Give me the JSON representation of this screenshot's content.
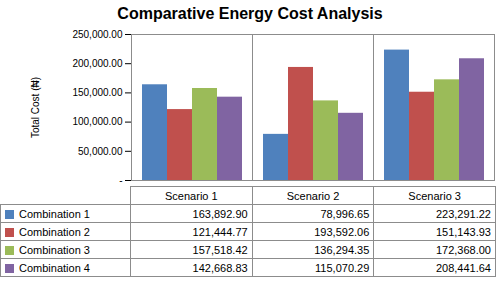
{
  "chart_data": {
    "type": "bar",
    "title": "Comparative Energy Cost Analysis",
    "y_label": "Total Cost (₦)",
    "categories": [
      "Scenario 1",
      "Scenario 2",
      "Scenario 3"
    ],
    "series": [
      {
        "name": "Combination 1",
        "color": "#4F81BD",
        "values": [
          163892.9,
          78996.65,
          223291.22
        ],
        "value_labels": [
          "163,892.90",
          "78,996.65",
          "223,291.22"
        ]
      },
      {
        "name": "Combination 2",
        "color": "#C0504D",
        "values": [
          121444.77,
          193592.06,
          151143.93
        ],
        "value_labels": [
          "121,444.77",
          "193,592.06",
          "151,143.93"
        ]
      },
      {
        "name": "Combination 3",
        "color": "#9BBB59",
        "values": [
          157518.42,
          136294.35,
          172368.0
        ],
        "value_labels": [
          "157,518.42",
          "136,294.35",
          "172,368.00"
        ]
      },
      {
        "name": "Combination 4",
        "color": "#8064A2",
        "values": [
          142668.83,
          115070.29,
          208441.64
        ],
        "value_labels": [
          "142,668.83",
          "115,070.29",
          "208,441.64"
        ]
      }
    ],
    "ylim": [
      0,
      250000
    ],
    "yticks": [
      {
        "value": 0,
        "label": "-"
      },
      {
        "value": 50000,
        "label": "50,000.00"
      },
      {
        "value": 100000,
        "label": "100,000.00"
      },
      {
        "value": 150000,
        "label": "150,000.00"
      },
      {
        "value": 200000,
        "label": "200,000.00"
      },
      {
        "value": 250000,
        "label": "250,000.00"
      }
    ],
    "grid": false,
    "data_labels": true
  }
}
